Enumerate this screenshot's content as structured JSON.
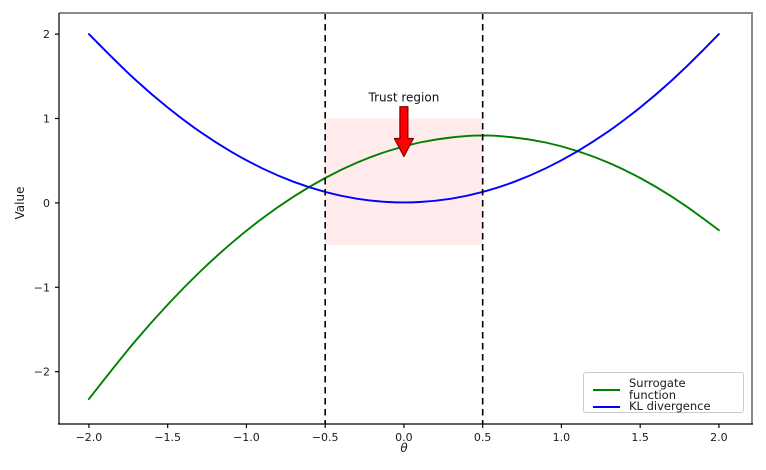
{
  "chart_data": {
    "type": "line",
    "title": "",
    "xlabel": "θ",
    "ylabel": "Value",
    "xlim": [
      -2.19,
      2.21
    ],
    "ylim": [
      -2.62,
      2.25
    ],
    "grid": false,
    "xticks": {
      "values": [
        -2.0,
        -1.5,
        -1.0,
        -0.5,
        0.0,
        0.5,
        1.0,
        1.5,
        2.0
      ],
      "labels": [
        "−2.0",
        "−1.5",
        "−1.0",
        "−0.5",
        "0.0",
        "0.5",
        "1.0",
        "1.5",
        "2.0"
      ]
    },
    "yticks": {
      "values": [
        -2,
        -1,
        0,
        1,
        2
      ],
      "labels": [
        "−2",
        "−1",
        "0",
        "1",
        "2"
      ]
    },
    "series": [
      {
        "name": "Surrogate function",
        "color": "#008000",
        "x": [
          -2.0,
          -1.8,
          -1.6,
          -1.4,
          -1.2,
          -1.0,
          -0.8,
          -0.6,
          -0.4,
          -0.2,
          0.0,
          0.2,
          0.4,
          0.5,
          0.6,
          0.8,
          1.0,
          1.2,
          1.4,
          1.6,
          1.8,
          2.0
        ],
        "y": [
          -2.325,
          -1.845,
          -1.405,
          -1.005,
          -0.645,
          -0.325,
          -0.045,
          0.195,
          0.395,
          0.555,
          0.675,
          0.755,
          0.795,
          0.8,
          0.795,
          0.755,
          0.675,
          0.555,
          0.395,
          0.195,
          -0.045,
          -0.325
        ]
      },
      {
        "name": "KL divergence",
        "color": "#0000ff",
        "x": [
          -2.0,
          -1.8,
          -1.6,
          -1.4,
          -1.2,
          -1.0,
          -0.8,
          -0.6,
          -0.4,
          -0.2,
          0.0,
          0.2,
          0.4,
          0.6,
          0.8,
          1.0,
          1.2,
          1.4,
          1.6,
          1.8,
          2.0
        ],
        "y": [
          2.0,
          1.62,
          1.28,
          0.98,
          0.72,
          0.5,
          0.32,
          0.18,
          0.08,
          0.02,
          0.0,
          0.02,
          0.08,
          0.18,
          0.32,
          0.5,
          0.72,
          0.98,
          1.28,
          1.62,
          2.0
        ]
      }
    ],
    "trust_region": {
      "x_min": -0.5,
      "x_max": 0.5,
      "y_min": -0.5,
      "y_max": 1.0,
      "fill": "rgba(255,0,0,0.08)"
    },
    "vlines": [
      {
        "x": -0.5,
        "color": "#000000",
        "style": "dashed"
      },
      {
        "x": 0.5,
        "color": "#000000",
        "style": "dashed"
      }
    ],
    "annotation": {
      "text": "Trust region",
      "text_xy": [
        0,
        1.2
      ],
      "arrow_from": [
        0,
        1.14
      ],
      "arrow_to": [
        0,
        0.55
      ],
      "arrow_fill": "#ff0000",
      "arrow_edge": "#7f0000"
    },
    "legend": {
      "position": "lower right",
      "entries": [
        {
          "label": "Surrogate function",
          "color": "#008000"
        },
        {
          "label": "KL divergence",
          "color": "#0000ff"
        }
      ]
    },
    "spine_colors": {
      "top": "#8a8a8a",
      "right": "#8a8a8a",
      "left": "#000000",
      "bottom": "#000000"
    }
  }
}
